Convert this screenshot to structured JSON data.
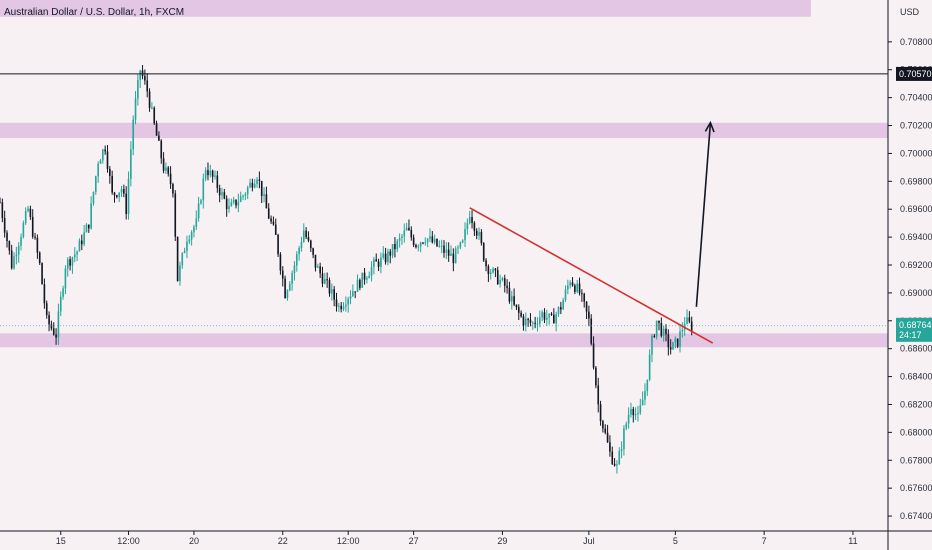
{
  "chart_data": {
    "type": "candlestick",
    "title": "Australian Dollar / U.S. Dollar, 1h, FXCM",
    "currency_label": "USD",
    "y_range": [
      0.673,
      0.711
    ],
    "y_ticks": [
      0.674,
      0.676,
      0.678,
      0.68,
      0.682,
      0.684,
      0.686,
      0.688,
      0.69,
      0.692,
      0.694,
      0.696,
      0.698,
      0.7,
      0.702,
      0.704,
      0.706,
      0.708
    ],
    "y_tick_labels": [
      "0.67400",
      "0.67600",
      "0.67800",
      "0.68000",
      "0.68200",
      "0.68400",
      "0.68600",
      "0.68800",
      "0.69000",
      "0.69200",
      "0.69400",
      "0.69600",
      "0.69800",
      "0.70000",
      "0.70200",
      "0.70400",
      "0.70600",
      "0.70800"
    ],
    "x_range": [
      0,
      380
    ],
    "x_ticks": [
      {
        "x": 26,
        "label": "15"
      },
      {
        "x": 55,
        "label": "12:00"
      },
      {
        "x": 83,
        "label": "20"
      },
      {
        "x": 121,
        "label": "22"
      },
      {
        "x": 149,
        "label": "12:00"
      },
      {
        "x": 177,
        "label": "27"
      },
      {
        "x": 215,
        "label": "29"
      },
      {
        "x": 252,
        "label": "Jul"
      },
      {
        "x": 289,
        "label": "5"
      },
      {
        "x": 327,
        "label": "7"
      },
      {
        "x": 365,
        "label": "11"
      }
    ],
    "zones": [
      {
        "low": 0.7098,
        "high": 0.711,
        "end_x": 347
      },
      {
        "low": 0.7011,
        "high": 0.7022,
        "end_x": 380
      },
      {
        "low": 0.6861,
        "high": 0.6871,
        "end_x": 380
      }
    ],
    "horizontal_level": {
      "value": 0.7057,
      "label": "0.70570"
    },
    "current_price": {
      "value": 0.68764,
      "label": "0.68764",
      "countdown": "24:17"
    },
    "trendline": {
      "x1": 201,
      "y1": 0.6961,
      "x2": 305,
      "y2": 0.6864
    },
    "projection_arrow": {
      "x1": 298,
      "y1": 0.689,
      "x2": 304,
      "y2": 0.7022
    },
    "ohlc_anchors": [
      [
        0,
        0.6965
      ],
      [
        5,
        0.692
      ],
      [
        12,
        0.696
      ],
      [
        17,
        0.692
      ],
      [
        20,
        0.688
      ],
      [
        24,
        0.687
      ],
      [
        28,
        0.692
      ],
      [
        33,
        0.693
      ],
      [
        38,
        0.695
      ],
      [
        42,
        0.6995
      ],
      [
        45,
        0.7005
      ],
      [
        48,
        0.697
      ],
      [
        52,
        0.6975
      ],
      [
        54,
        0.696
      ],
      [
        57,
        0.7025
      ],
      [
        60,
        0.706
      ],
      [
        63,
        0.7045
      ],
      [
        66,
        0.702
      ],
      [
        70,
        0.699
      ],
      [
        74,
        0.6975
      ],
      [
        76,
        0.691
      ],
      [
        80,
        0.694
      ],
      [
        84,
        0.695
      ],
      [
        88,
        0.699
      ],
      [
        92,
        0.698
      ],
      [
        98,
        0.696
      ],
      [
        104,
        0.697
      ],
      [
        110,
        0.6985
      ],
      [
        114,
        0.696
      ],
      [
        118,
        0.694
      ],
      [
        122,
        0.69
      ],
      [
        126,
        0.692
      ],
      [
        130,
        0.6945
      ],
      [
        135,
        0.692
      ],
      [
        140,
        0.6905
      ],
      [
        145,
        0.689
      ],
      [
        150,
        0.69
      ],
      [
        155,
        0.691
      ],
      [
        160,
        0.692
      ],
      [
        165,
        0.6925
      ],
      [
        170,
        0.6935
      ],
      [
        174,
        0.6945
      ],
      [
        178,
        0.6935
      ],
      [
        182,
        0.694
      ],
      [
        186,
        0.6935
      ],
      [
        190,
        0.693
      ],
      [
        194,
        0.6925
      ],
      [
        198,
        0.6935
      ],
      [
        201,
        0.6958
      ],
      [
        205,
        0.694
      ],
      [
        208,
        0.692
      ],
      [
        212,
        0.6912
      ],
      [
        216,
        0.6905
      ],
      [
        220,
        0.689
      ],
      [
        224,
        0.688
      ],
      [
        228,
        0.6878
      ],
      [
        232,
        0.6885
      ],
      [
        236,
        0.688
      ],
      [
        240,
        0.689
      ],
      [
        244,
        0.691
      ],
      [
        248,
        0.69
      ],
      [
        252,
        0.688
      ],
      [
        254,
        0.685
      ],
      [
        256,
        0.682
      ],
      [
        258,
        0.6805
      ],
      [
        261,
        0.6785
      ],
      [
        264,
        0.6775
      ],
      [
        267,
        0.68
      ],
      [
        270,
        0.682
      ],
      [
        273,
        0.681
      ],
      [
        276,
        0.683
      ],
      [
        279,
        0.6865
      ],
      [
        281,
        0.688
      ],
      [
        284,
        0.687
      ],
      [
        287,
        0.686
      ],
      [
        290,
        0.6865
      ],
      [
        293,
        0.688
      ],
      [
        296,
        0.6876
      ]
    ],
    "colors": {
      "up": "#26a69a",
      "down": "#131722",
      "zone": "#e2c6e4",
      "trendline": "#d32f2f",
      "arrow": "#131722",
      "background": "#f8f1f3"
    }
  }
}
